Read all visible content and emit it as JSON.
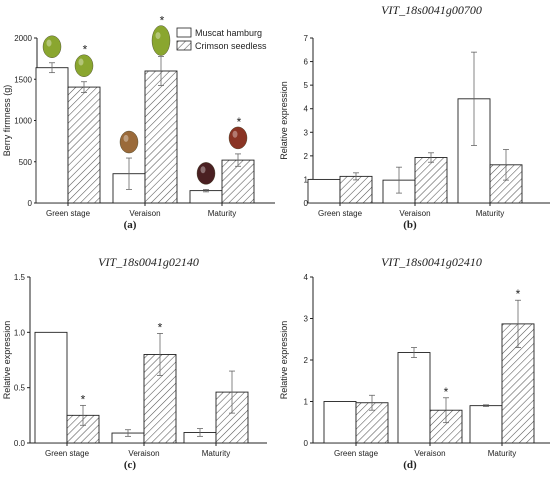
{
  "legend": {
    "items": [
      "Muscat hamburg",
      "Crimson seedless"
    ]
  },
  "bar_colors": {
    "muscat": "#ffffff",
    "crimson_hatch": "#555555",
    "axis": "#222222",
    "err": "#666666",
    "grape_green": "#8aa62f",
    "grape_bronze": "#9a6a3a",
    "grape_red": "#8a3424",
    "grape_dark": "#4a2022"
  },
  "chart_data": [
    {
      "type": "bar",
      "panel": "(a)",
      "title": "",
      "xlabel": "",
      "ylabel": "Berry firmness (g)",
      "categories": [
        "Green stage",
        "Veraison",
        "Maturity"
      ],
      "ylim": [
        0,
        2000
      ],
      "yticks": [
        0,
        500,
        1000,
        1500,
        2000
      ],
      "series": [
        {
          "name": "Muscat hamburg",
          "values": [
            1640,
            355,
            150
          ],
          "errors": [
            60,
            190,
            15
          ]
        },
        {
          "name": "Crimson seedless",
          "values": [
            1405,
            1600,
            520
          ],
          "errors": [
            65,
            175,
            75
          ]
        }
      ],
      "significance": {
        "Green stage": "*",
        "Veraison": "*",
        "Maturity": "*"
      },
      "grape_icons": [
        "green",
        "green",
        "bronze",
        "green",
        "dark",
        "red"
      ]
    },
    {
      "type": "bar",
      "panel": "(b)",
      "title": "VIT_18s0041g00700",
      "xlabel": "",
      "ylabel": "Relative expression",
      "categories": [
        "Green stage",
        "Veraison",
        "Maturity"
      ],
      "ylim": [
        0,
        7
      ],
      "yticks": [
        0,
        1,
        2,
        3,
        4,
        5,
        6,
        7
      ],
      "series": [
        {
          "name": "Muscat hamburg",
          "values": [
            1.0,
            0.97,
            4.42
          ],
          "errors": [
            0,
            0.55,
            1.98
          ]
        },
        {
          "name": "Crimson seedless",
          "values": [
            1.13,
            1.93,
            1.62
          ],
          "errors": [
            0.15,
            0.2,
            0.65
          ]
        }
      ],
      "significance": {}
    },
    {
      "type": "bar",
      "panel": "(c)",
      "title": "VIT_18s0041g02140",
      "xlabel": "",
      "ylabel": "Relative expression",
      "categories": [
        "Green stage",
        "Veraison",
        "Maturity"
      ],
      "ylim": [
        0,
        1.5
      ],
      "yticks": [
        0.0,
        0.5,
        1.0,
        1.5
      ],
      "series": [
        {
          "name": "Muscat hamburg",
          "values": [
            1.0,
            0.09,
            0.095
          ],
          "errors": [
            0,
            0.03,
            0.035
          ]
        },
        {
          "name": "Crimson seedless",
          "values": [
            0.25,
            0.8,
            0.46
          ],
          "errors": [
            0.09,
            0.19,
            0.19
          ]
        }
      ],
      "significance": {
        "Green stage": "*",
        "Veraison": "*"
      }
    },
    {
      "type": "bar",
      "panel": "(d)",
      "title": "VIT_18s0041g02410",
      "xlabel": "",
      "ylabel": "Relative expression",
      "categories": [
        "Green stage",
        "Veraison",
        "Maturity"
      ],
      "ylim": [
        0,
        4
      ],
      "yticks": [
        0,
        1,
        2,
        3,
        4
      ],
      "series": [
        {
          "name": "Muscat hamburg",
          "values": [
            1.0,
            2.18,
            0.9
          ],
          "errors": [
            0,
            0.12,
            0.02
          ]
        },
        {
          "name": "Crimson seedless",
          "values": [
            0.97,
            0.79,
            2.87
          ],
          "errors": [
            0.18,
            0.3,
            0.57
          ]
        }
      ],
      "significance": {
        "Veraison": "*",
        "Maturity": "*"
      }
    }
  ]
}
